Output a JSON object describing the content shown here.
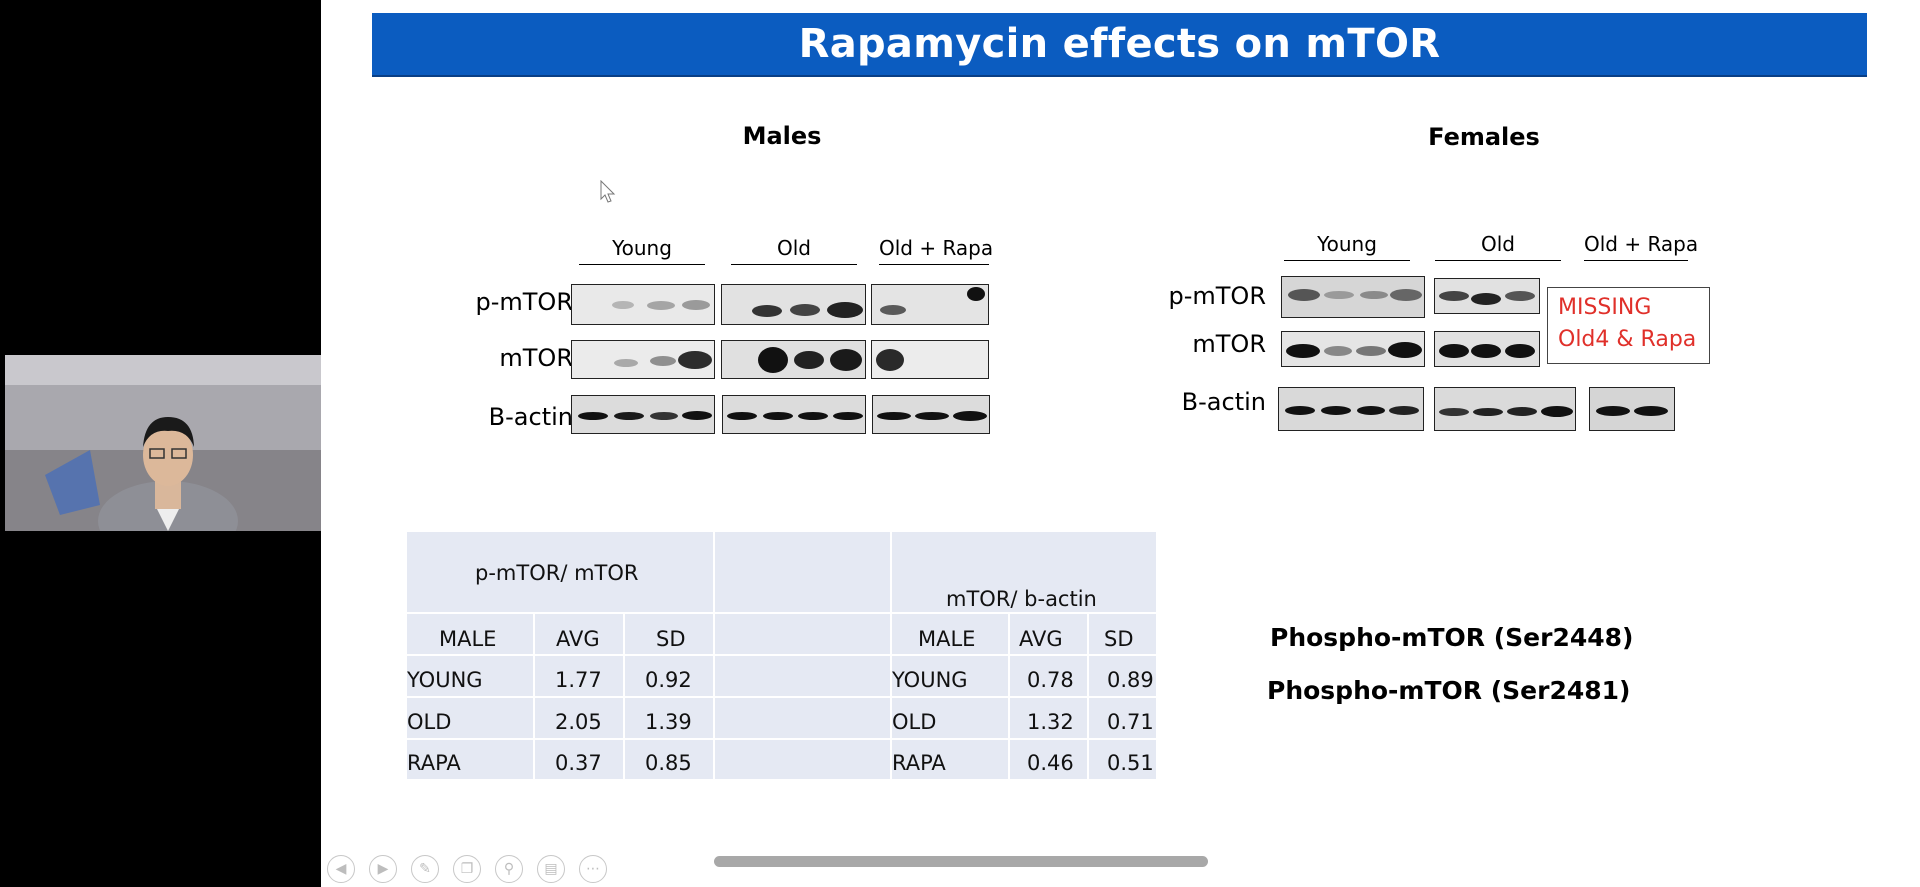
{
  "slide": {
    "title": "Rapamycin effects on mTOR",
    "males_title": "Males",
    "females_title": "Females",
    "males_groups": [
      "Young",
      "Old",
      "Old + Rapa"
    ],
    "females_groups": [
      "Young",
      "Old",
      "Old + Rapa"
    ],
    "blot_rows": [
      "p-mTOR",
      "mTOR",
      "B-actin"
    ],
    "missing_note_line1": "MISSING",
    "missing_note_line2": "Old4 & Rapa",
    "table": {
      "left_header": "p-mTOR/ mTOR",
      "right_header": "mTOR/ b-actin",
      "col_headers": [
        "MALE",
        "AVG",
        "SD"
      ],
      "left_rows": [
        [
          "YOUNG",
          "1.77",
          "0.92"
        ],
        [
          "OLD",
          "2.05",
          "1.39"
        ],
        [
          "RAPA",
          "0.37",
          "0.85"
        ]
      ],
      "right_rows": [
        [
          "YOUNG",
          "0.78",
          "0.89"
        ],
        [
          "OLD",
          "1.32",
          "0.71"
        ],
        [
          "RAPA",
          "0.46",
          "0.51"
        ]
      ]
    },
    "phospho_lines": [
      "Phospho-mTOR (Ser2448)",
      "Phospho-mTOR (Ser2481)"
    ]
  },
  "toolbar_icons": [
    "prev-icon",
    "next-icon",
    "pen-icon",
    "copy-icon",
    "zoom-icon",
    "subtitles-icon",
    "more-icon"
  ],
  "toolbar_glyphs": [
    "◀",
    "▶",
    "✎",
    "❐",
    "⚲",
    "▤",
    "⋯"
  ]
}
